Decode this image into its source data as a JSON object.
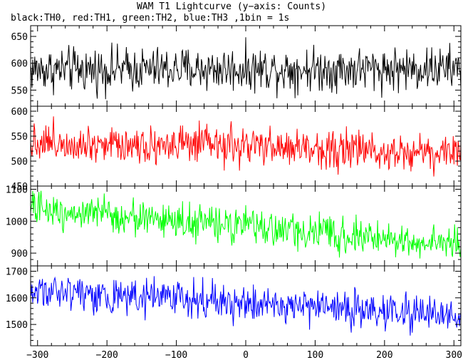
{
  "chart_data": {
    "type": "line",
    "title": "WAM T1 Lightcurve (y−axis: Counts)",
    "subtitle": "black:TH0, red:TH1, green:TH2, blue:TH3 ,1bin = 1s",
    "xlim": [
      -310,
      310
    ],
    "x_ticks": [
      -300,
      -200,
      -100,
      0,
      100,
      200,
      300
    ],
    "x_tick_labels": [
      "−300",
      "−200",
      "−100",
      "0",
      "100",
      "200",
      "300"
    ],
    "x_step": 1,
    "grid": false,
    "panels": [
      {
        "series": "TH0",
        "color": "#000000",
        "ylim": [
          520,
          670
        ],
        "y_ticks": [
          550,
          600,
          650
        ],
        "y_tick_labels": [
          "550",
          "600",
          "650"
        ],
        "mean_start": 588,
        "mean_end": 590,
        "noise_amplitude": 24
      },
      {
        "series": "TH1",
        "color": "#ff0000",
        "ylim": [
          450,
          610
        ],
        "y_ticks": [
          450,
          500,
          550,
          600
        ],
        "y_tick_labels": [
          "450",
          "500",
          "550",
          "600"
        ],
        "mean_start": 540,
        "mean_end": 517,
        "noise_amplitude": 23
      },
      {
        "series": "TH2",
        "color": "#00ff00",
        "ylim": [
          860,
          1110
        ],
        "y_ticks": [
          900,
          1000,
          1100
        ],
        "y_tick_labels": [
          "900",
          "1000",
          "1100"
        ],
        "mean_start": 1040,
        "mean_end": 925,
        "noise_amplitude": 32
      },
      {
        "series": "TH3",
        "color": "#0000ff",
        "ylim": [
          1420,
          1720
        ],
        "y_ticks": [
          1500,
          1600,
          1700
        ],
        "y_tick_labels": [
          "1500",
          "1600",
          "1700"
        ],
        "mean_start": 1630,
        "mean_end": 1530,
        "noise_amplitude": 40
      }
    ]
  }
}
